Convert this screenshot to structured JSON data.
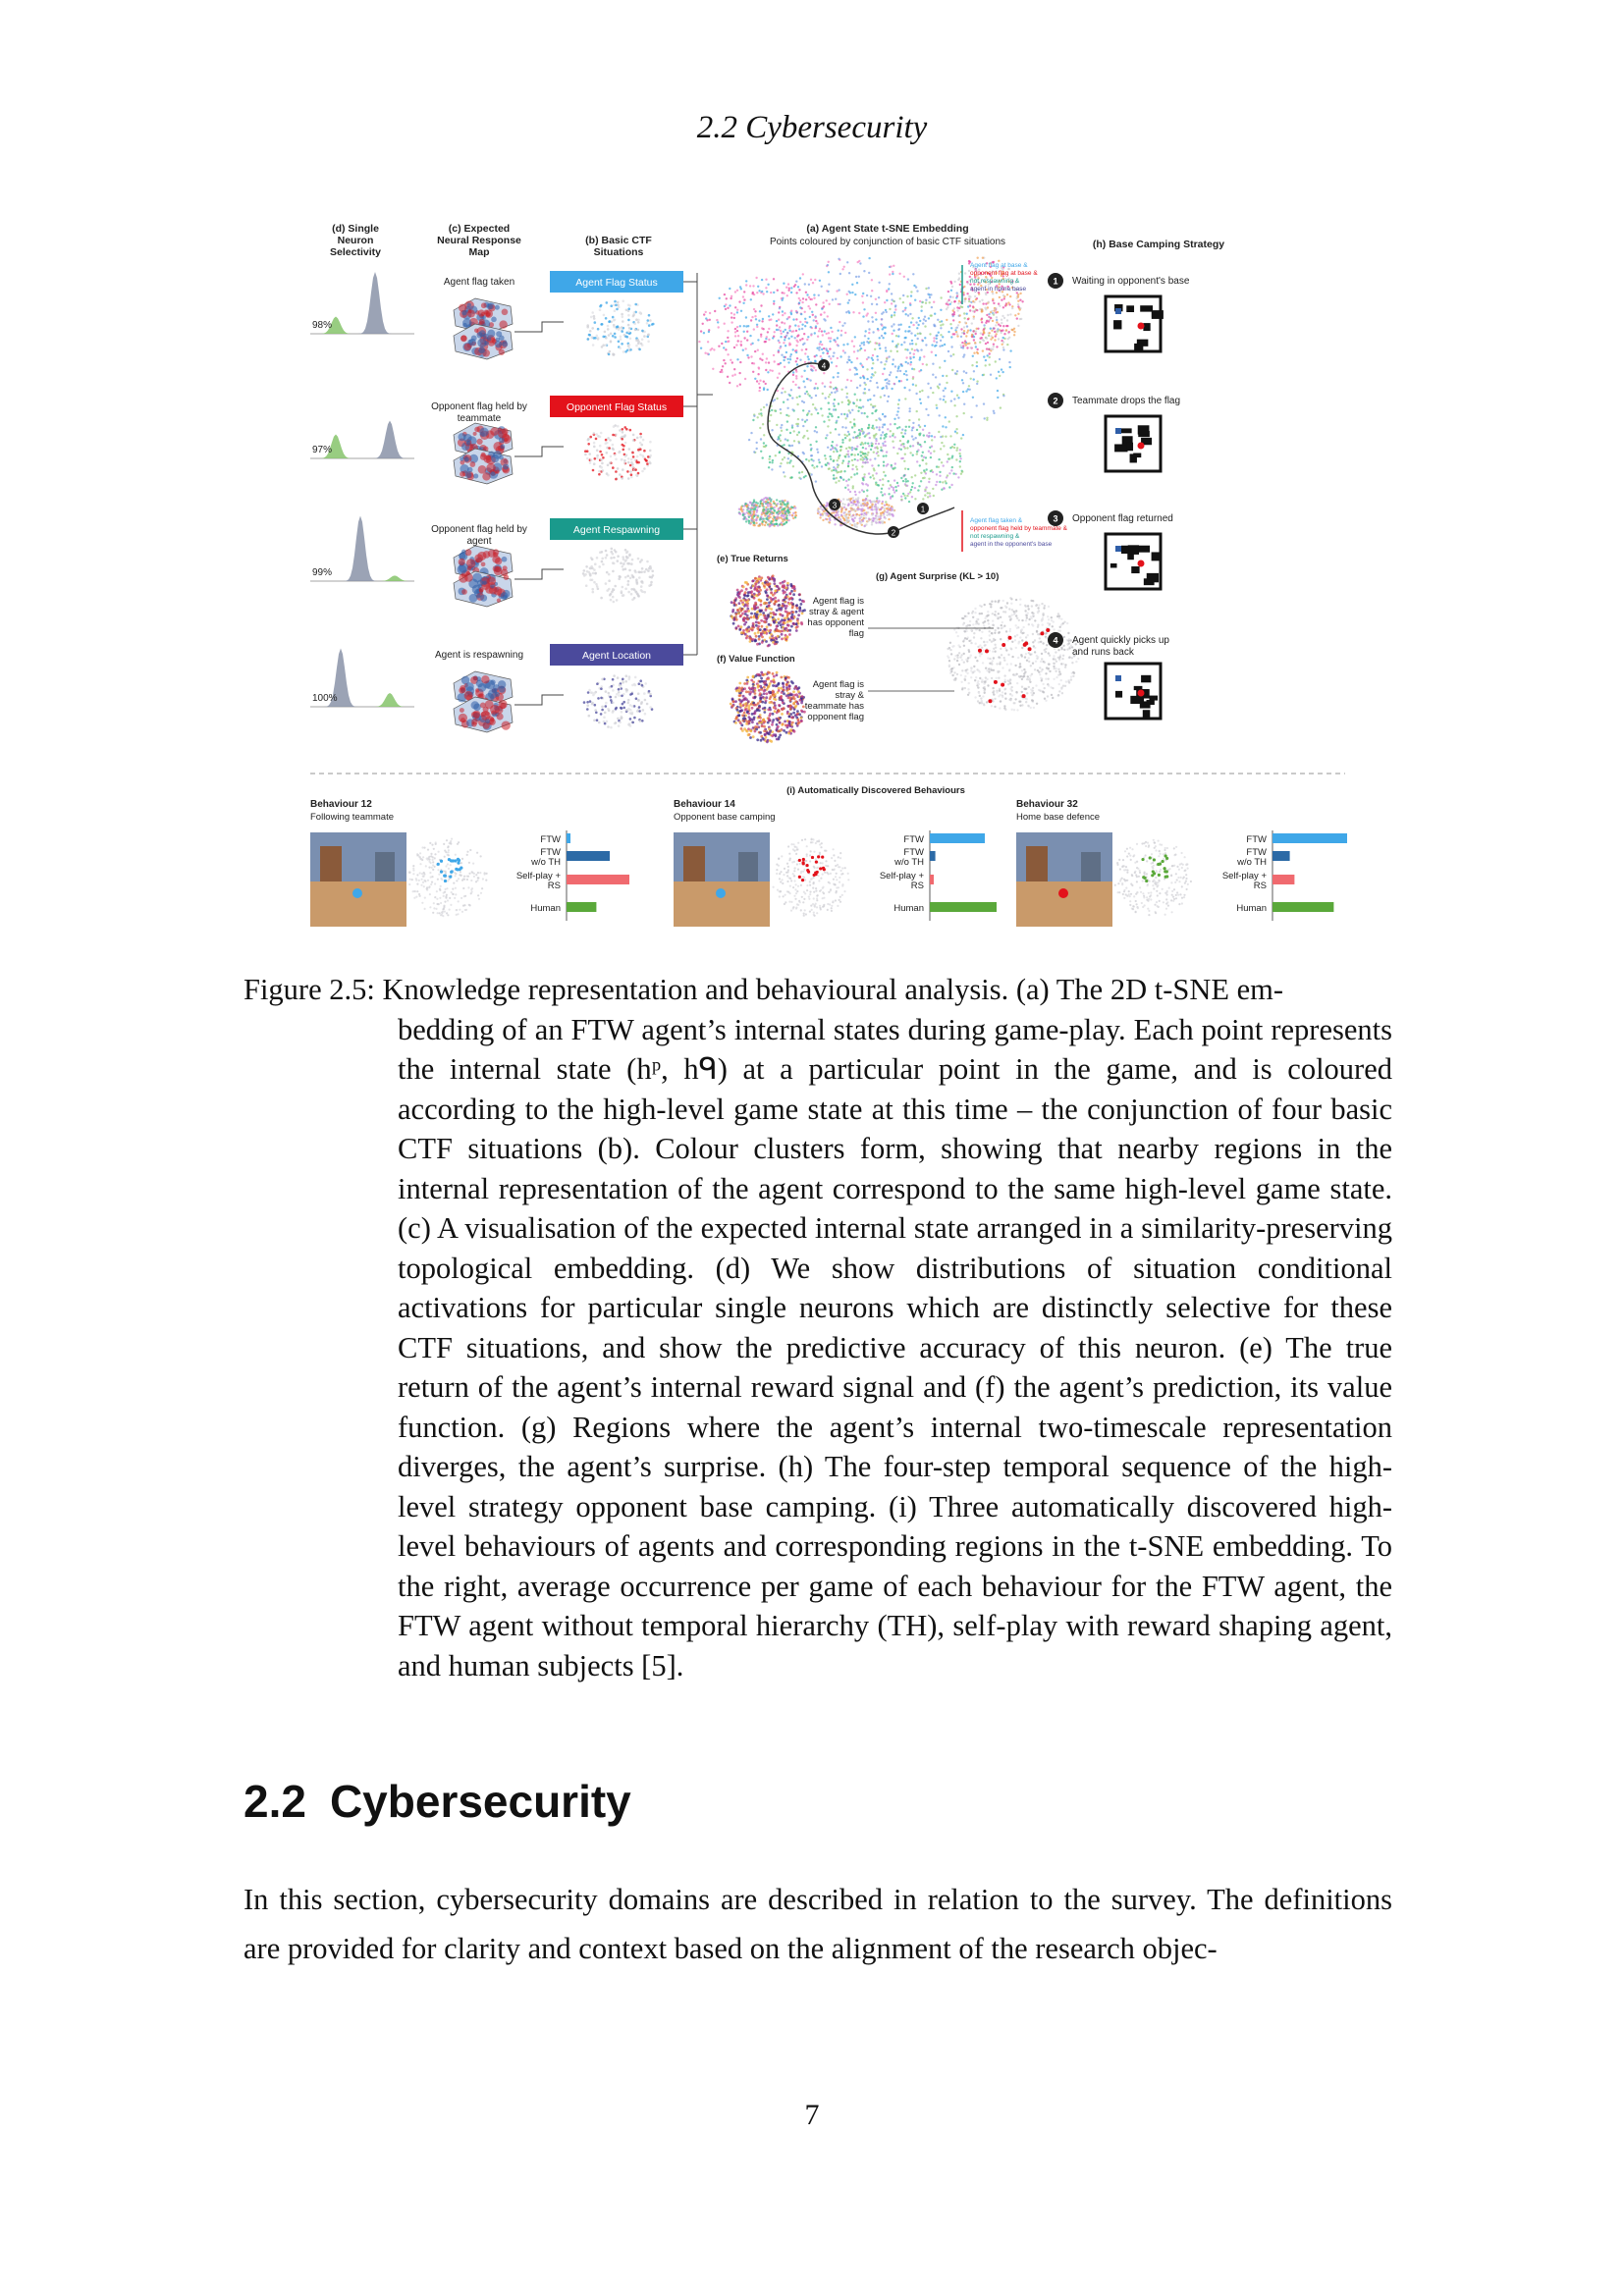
{
  "header": {
    "running_title": "2.2 Cybersecurity"
  },
  "figure": {
    "panels": {
      "d_title": [
        "(d) Single",
        "Neuron",
        "Selectivity"
      ],
      "c_title": [
        "(c) Expected",
        "Neural Response",
        "Map"
      ],
      "b_title": [
        "(b) Basic CTF",
        "Situations"
      ],
      "a_title": "(a) Agent State t-SNE Embedding",
      "a_subtitle": "Points coloured by conjunction of basic CTF situations",
      "h_title": "(h) Base Camping Strategy",
      "e_title": "(e) True Returns",
      "f_title": "(f) Value Function",
      "g_title": "(g) Agent Surprise (KL > 10)",
      "i_title": "(i) Automatically Discovered Behaviours"
    },
    "rows": [
      {
        "percent": "98%",
        "c_label": [
          "Agent flag taken"
        ],
        "b_label": "Agent Flag Status",
        "b_color": "#3fa7e8"
      },
      {
        "percent": "97%",
        "c_label": [
          "Opponent flag held by",
          "teammate"
        ],
        "b_label": "Opponent Flag Status",
        "b_color": "#e3121b"
      },
      {
        "percent": "99%",
        "c_label": [
          "Opponent flag held by",
          "agent"
        ],
        "b_label": "Agent Respawning",
        "b_color": "#1a9a8c"
      },
      {
        "percent": "100%",
        "c_label": [
          "Agent is respawning"
        ],
        "b_label": "Agent Location",
        "b_color": "#4b4a9c"
      }
    ],
    "legend_top": [
      {
        "text": "Agent flag at base &",
        "color": "#3fa7e8"
      },
      {
        "text": "opponent flag at base &",
        "color": "#e3121b"
      },
      {
        "text": "not respawning &",
        "color": "#1a9a8c"
      },
      {
        "text": "agent in home base",
        "color": "#4b4a9c"
      }
    ],
    "legend_bottom": [
      {
        "text": "Agent flag taken &",
        "color": "#3fa7e8"
      },
      {
        "text": "opponent flag held by teammate &",
        "color": "#e3121b"
      },
      {
        "text": "not respawning &",
        "color": "#1a9a8c"
      },
      {
        "text": "agent in the opponent's base",
        "color": "#4b4a9c"
      }
    ],
    "markers": [
      "1",
      "2",
      "3",
      "4"
    ],
    "g_notes": [
      [
        "Agent flag is",
        "stray & agent",
        "has opponent",
        "flag"
      ],
      [
        "Agent flag is",
        "stray &",
        "teammate has",
        "opponent flag"
      ]
    ],
    "h_steps": [
      {
        "n": "1",
        "text": [
          "Waiting in opponent's base"
        ]
      },
      {
        "n": "2",
        "text": [
          "Teammate drops the flag"
        ]
      },
      {
        "n": "3",
        "text": [
          "Opponent flag returned"
        ]
      },
      {
        "n": "4",
        "text": [
          "Agent quickly picks up",
          "and runs back"
        ]
      }
    ],
    "behaviours": [
      {
        "title": "Behaviour 12",
        "subtitle": "Following teammate"
      },
      {
        "title": "Behaviour 14",
        "subtitle": "Opponent base camping"
      },
      {
        "title": "Behaviour 32",
        "subtitle": "Home base defence"
      }
    ],
    "bar_labels": [
      {
        "lines": [
          "FTW"
        ]
      },
      {
        "lines": [
          "FTW",
          "w/o TH"
        ]
      },
      {
        "lines": [
          "Self-play +",
          "RS"
        ]
      },
      {
        "lines": [
          "Human"
        ]
      }
    ],
    "bar_colors": [
      "#3fa7e8",
      "#2c6aa6",
      "#f06a6f",
      "#5aa83a"
    ],
    "bar_values": [
      [
        0.05,
        0.55,
        0.8,
        0.38
      ],
      [
        0.7,
        0.07,
        0.05,
        0.85
      ],
      [
        0.95,
        0.22,
        0.28,
        0.78
      ]
    ],
    "colors": {
      "blue": "#3fa7e8",
      "red": "#e3121b",
      "teal": "#1a9a8c",
      "indigo": "#4b4a9c"
    }
  },
  "caption": {
    "label": "Figure 2.5:",
    "first_line": "Knowledge representation and behavioural analysis. (a) The 2D t-SNE em-",
    "rest": "bedding of an FTW agent’s internal states during game-play. Each point represents the internal state (hᵖ, hᑫ) at a particular point in the game, and is coloured according to the high-level game state at this time – the conjunction of four basic CTF situations (b). Colour clusters form, showing that nearby regions in the internal representation of the agent correspond to the same high-level game state. (c) A visualisation of the expected internal state arranged in a similarity-preserving topological embedding. (d) We show distributions of situation conditional activations for particular single neurons which are distinctly selective for these CTF situations, and show the predictive accuracy of this neuron. (e) The true return of the agent’s internal reward signal and (f) the agent’s prediction, its value function. (g) Regions where the agent’s internal two-timescale representation diverges, the agent’s surprise. (h) The four-step temporal sequence of the high-level strategy opponent base camping. (i) Three automatically discovered high-level behaviours of agents and corresponding regions in the t-SNE embedding. To the right, average occurrence per game of each behaviour for the FTW agent, the FTW agent without temporal hierarchy (TH), self-play with reward shaping agent, and human subjects [5]."
  },
  "section": {
    "number": "2.2",
    "title": "Cybersecurity"
  },
  "body": "In this section, cybersecurity domains are described in relation to the survey. The definitions are provided for clarity and context based on the alignment of the research objec-",
  "page_number": "7"
}
